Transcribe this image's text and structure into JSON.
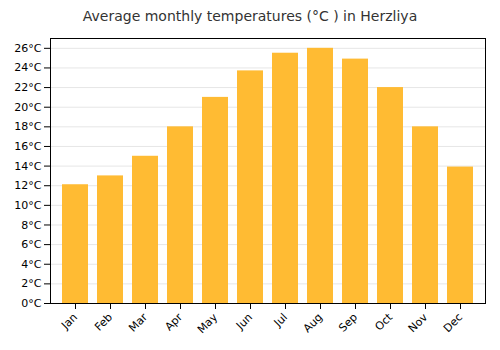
{
  "chart_data": {
    "type": "bar",
    "title": "Average monthly temperatures (°C ) in Herzliya",
    "categories": [
      "Jan",
      "Feb",
      "Mar",
      "Apr",
      "May",
      "Jun",
      "Jul",
      "Aug",
      "Sep",
      "Oct",
      "Nov",
      "Dec"
    ],
    "values": [
      12.1,
      13.0,
      15.0,
      18.0,
      21.0,
      23.7,
      25.5,
      26.0,
      24.9,
      22.0,
      18.0,
      13.9
    ],
    "color": "#FFBB33",
    "ylim": [
      0,
      27
    ],
    "yticks": [
      {
        "value": 0,
        "label": "0°C"
      },
      {
        "value": 2,
        "label": "2°C"
      },
      {
        "value": 4,
        "label": "4°C"
      },
      {
        "value": 6,
        "label": "6°C"
      },
      {
        "value": 8,
        "label": "8°C"
      },
      {
        "value": 10,
        "label": "10°C"
      },
      {
        "value": 12,
        "label": "12°C"
      },
      {
        "value": 14,
        "label": "14°C"
      },
      {
        "value": 16,
        "label": "16°C"
      },
      {
        "value": 18,
        "label": "18°C"
      },
      {
        "value": 20,
        "label": "20°C"
      },
      {
        "value": 22,
        "label": "22°C"
      },
      {
        "value": 24,
        "label": "24°C"
      },
      {
        "value": 26,
        "label": "26°C"
      }
    ],
    "grid": true
  }
}
